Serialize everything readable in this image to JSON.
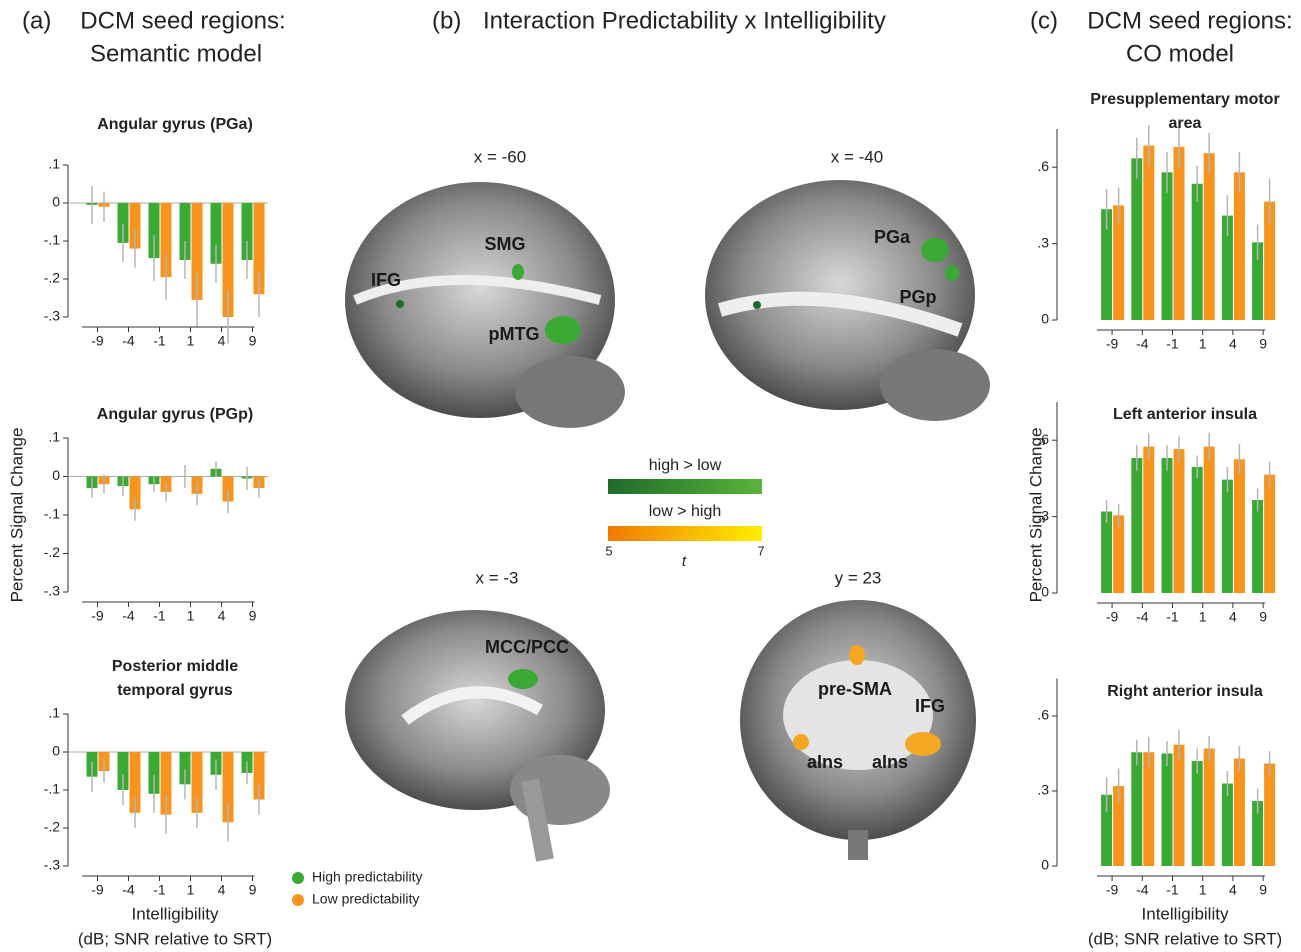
{
  "panels": [
    {
      "label": "(a)",
      "title": [
        "DCM seed regions:",
        "Semantic model"
      ]
    },
    {
      "label": "(b)",
      "title": [
        "Interaction Predictability x Intelligibility"
      ]
    },
    {
      "label": "(c)",
      "title": [
        "DCM seed regions:",
        "CO model"
      ]
    }
  ],
  "brain": {
    "views": [
      {
        "slice": "x = -60",
        "regions": [
          "IFG",
          "SMG",
          "pMTG"
        ]
      },
      {
        "slice": "x = -40",
        "regions": [
          "PGa",
          "PGp"
        ]
      },
      {
        "slice": "x = -3",
        "regions": [
          "MCC/PCC"
        ]
      },
      {
        "slice": "y = 23",
        "regions": [
          "pre-SMA",
          "IFG",
          "aIns",
          "aIns"
        ]
      }
    ],
    "colorbar": {
      "positive": "high > low",
      "negative": "low > high",
      "min": 5,
      "max": 7,
      "label": "t"
    }
  },
  "chart_data": [
    {
      "type": "bar",
      "title": "Angular gyrus (PGa)",
      "categories": [
        "-9",
        "-4",
        "-1",
        "1",
        "4",
        "9"
      ],
      "series": [
        {
          "name": "High predictability",
          "color": "#3aaa35",
          "values": [
            -0.005,
            -0.105,
            -0.145,
            -0.15,
            -0.16,
            -0.15
          ],
          "errors": [
            0.05,
            0.05,
            0.06,
            0.05,
            0.05,
            0.05
          ]
        },
        {
          "name": "Low predictability",
          "color": "#f7941d",
          "values": [
            -0.01,
            -0.12,
            -0.195,
            -0.255,
            -0.3,
            -0.24
          ],
          "errors": [
            0.04,
            0.05,
            0.06,
            0.07,
            0.07,
            0.06
          ]
        }
      ],
      "ylim": [
        -0.3,
        0.1
      ],
      "yticks": [
        {
          "value": 0.1,
          "label": ".1"
        },
        0,
        {
          "value": -0.1,
          "label": "-.1"
        },
        {
          "value": -0.2,
          "label": "-.2"
        },
        {
          "value": -0.3,
          "label": "-.3"
        }
      ]
    },
    {
      "type": "bar",
      "title": "Angular gyrus (PGp)",
      "categories": [
        "-9",
        "-4",
        "-1",
        "1",
        "4",
        "9"
      ],
      "ylabel": "Percent Signal Change",
      "series": [
        {
          "color": "#3aaa35",
          "values": [
            -0.03,
            -0.025,
            -0.02,
            0,
            0.02,
            -0.005
          ],
          "errors": [
            0.025,
            0.025,
            0.02,
            0.03,
            0.02,
            0.03
          ]
        },
        {
          "color": "#f7941d",
          "values": [
            -0.02,
            -0.085,
            -0.04,
            -0.045,
            -0.065,
            -0.03
          ],
          "errors": [
            0.025,
            0.03,
            0.025,
            0.03,
            0.03,
            0.025
          ]
        }
      ],
      "ylim": [
        -0.3,
        0.1
      ],
      "yticks": [
        {
          "value": 0.1,
          "label": ".1"
        },
        0,
        {
          "value": -0.1,
          "label": "-.1"
        },
        {
          "value": -0.2,
          "label": "-.2"
        },
        {
          "value": -0.3,
          "label": "-.3"
        }
      ]
    },
    {
      "type": "bar",
      "title": "Posterior middle temporal gyrus",
      "categories": [
        "-9",
        "-4",
        "-1",
        "1",
        "4",
        "9"
      ],
      "xlabel": [
        "Intelligibility",
        "(dB; SNR relative to SRT)"
      ],
      "series": [
        {
          "color": "#3aaa35",
          "values": [
            -0.065,
            -0.1,
            -0.11,
            -0.085,
            -0.06,
            -0.055
          ],
          "errors": [
            0.04,
            0.04,
            0.05,
            0.04,
            0.04,
            0.03
          ]
        },
        {
          "color": "#f7941d",
          "values": [
            -0.05,
            -0.16,
            -0.165,
            -0.16,
            -0.185,
            -0.125
          ],
          "errors": [
            0.03,
            0.04,
            0.05,
            0.04,
            0.05,
            0.04
          ]
        }
      ],
      "ylim": [
        -0.3,
        0.1
      ],
      "yticks": [
        {
          "value": 0.1,
          "label": ".1"
        },
        0,
        {
          "value": -0.1,
          "label": "-.1"
        },
        {
          "value": -0.2,
          "label": "-.2"
        },
        {
          "value": -0.3,
          "label": "-.3"
        }
      ]
    },
    {
      "type": "bar",
      "title": "Presupplementary motor area",
      "categories": [
        "-9",
        "-4",
        "-1",
        "1",
        "4",
        "9"
      ],
      "series": [
        {
          "color": "#3aaa35",
          "values": [
            0.435,
            0.635,
            0.58,
            0.535,
            0.41,
            0.305
          ],
          "errors": [
            0.08,
            0.08,
            0.08,
            0.07,
            0.08,
            0.07
          ]
        },
        {
          "color": "#f7941d",
          "values": [
            0.45,
            0.685,
            0.68,
            0.655,
            0.58,
            0.465
          ],
          "errors": [
            0.07,
            0.08,
            0.08,
            0.08,
            0.08,
            0.09
          ]
        }
      ],
      "ylim": [
        0,
        0.75
      ],
      "yticks": [
        0,
        {
          "value": 0.3,
          "label": ".3"
        },
        {
          "value": 0.6,
          "label": ".6"
        }
      ]
    },
    {
      "type": "bar",
      "title": "Left anterior insula",
      "categories": [
        "-9",
        "-4",
        "-1",
        "1",
        "4",
        "9"
      ],
      "ylabel": "Percent Signal Change",
      "series": [
        {
          "color": "#3aaa35",
          "values": [
            0.32,
            0.53,
            0.53,
            0.495,
            0.445,
            0.365
          ],
          "errors": [
            0.045,
            0.05,
            0.05,
            0.045,
            0.05,
            0.045
          ]
        },
        {
          "color": "#f7941d",
          "values": [
            0.305,
            0.575,
            0.565,
            0.575,
            0.525,
            0.465
          ],
          "errors": [
            0.045,
            0.05,
            0.05,
            0.055,
            0.06,
            0.05
          ]
        }
      ],
      "ylim": [
        0,
        0.75
      ],
      "yticks": [
        0,
        {
          "value": 0.3,
          "label": ".3"
        },
        {
          "value": 0.6,
          "label": ".6"
        }
      ]
    },
    {
      "type": "bar",
      "title": "Right anterior insula",
      "categories": [
        "-9",
        "-4",
        "-1",
        "1",
        "4",
        "9"
      ],
      "xlabel": [
        "Intelligibility",
        "(dB; SNR relative to SRT)"
      ],
      "series": [
        {
          "color": "#3aaa35",
          "values": [
            0.285,
            0.455,
            0.45,
            0.42,
            0.33,
            0.26
          ],
          "errors": [
            0.07,
            0.05,
            0.05,
            0.05,
            0.05,
            0.05
          ]
        },
        {
          "color": "#f7941d",
          "values": [
            0.32,
            0.455,
            0.485,
            0.47,
            0.43,
            0.41
          ],
          "errors": [
            0.07,
            0.06,
            0.06,
            0.05,
            0.05,
            0.05
          ]
        }
      ],
      "ylim": [
        0,
        0.75
      ],
      "yticks": [
        0,
        {
          "value": 0.3,
          "label": ".3"
        },
        {
          "value": 0.6,
          "label": ".6"
        }
      ]
    }
  ]
}
